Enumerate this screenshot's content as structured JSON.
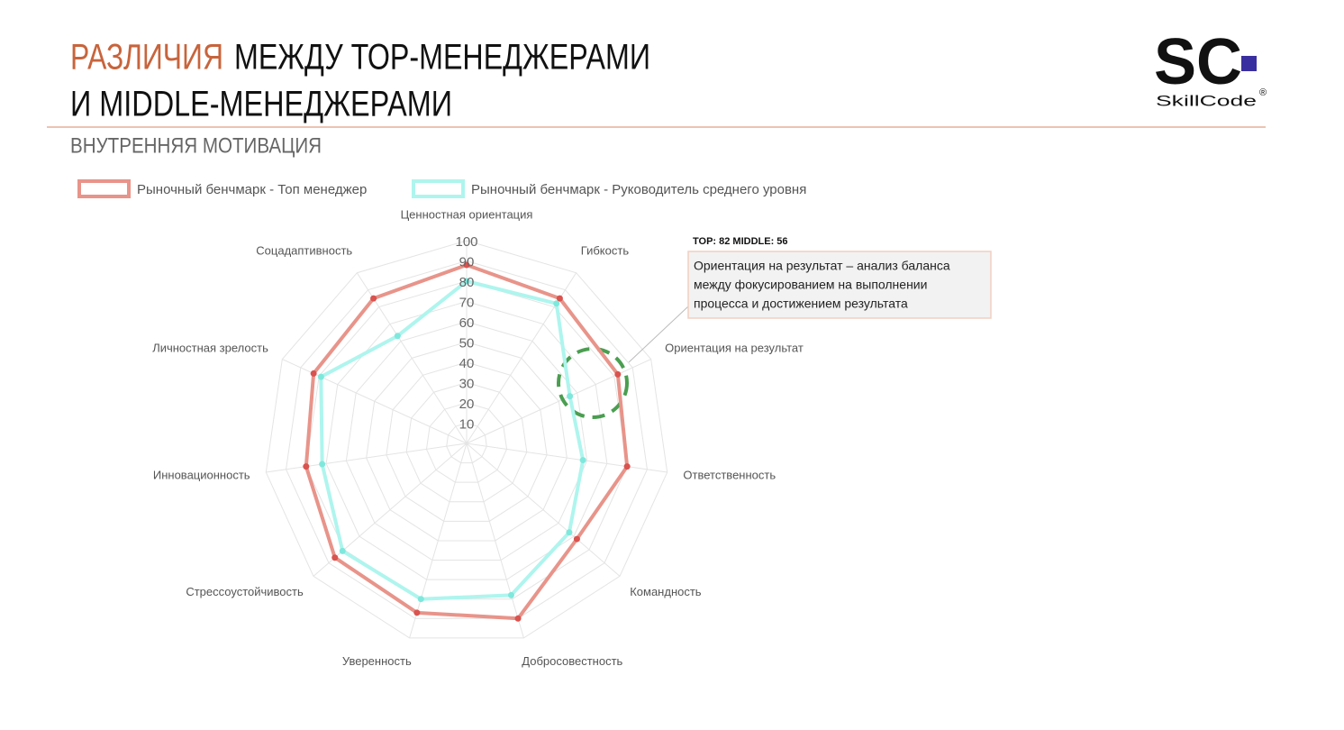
{
  "header": {
    "title_accent": "РАЗЛИЧИЯ",
    "title_line1": "МЕЖДУ ТОР-МЕНЕДЖЕРАМИ",
    "title_line2": "И MIDDLE-МЕНЕДЖЕРАМИ",
    "subtitle": "ВНУТРЕННЯЯ МОТИВАЦИЯ"
  },
  "logo": {
    "mark": "SC",
    "name": "SkillCode",
    "registered": "®"
  },
  "chart_data": {
    "type": "radar",
    "categories": [
      "Ценностная ориентация",
      "Гибкость",
      "Ориентация на результат",
      "Ответственность",
      "Командность",
      "Добросовестность",
      "Уверенность",
      "Стрессоустойчивость",
      "Инновационность",
      "Личностная зрелость",
      "Соцадаптивность"
    ],
    "series": [
      {
        "name": "Рыночный бенчмарк - Топ менеджер",
        "color": "#e8948a",
        "values": [
          88,
          85,
          82,
          80,
          72,
          90,
          87,
          86,
          80,
          83,
          85
        ]
      },
      {
        "name": "Рыночный бенчмарк - Руководитель среднего уровня",
        "color": "#aef5ee",
        "values": [
          80,
          82,
          56,
          58,
          67,
          78,
          80,
          81,
          72,
          79,
          63
        ]
      }
    ],
    "ylim": [
      0,
      100
    ],
    "rticks": [
      10,
      20,
      30,
      40,
      50,
      60,
      70,
      80,
      90,
      100
    ],
    "grid": true,
    "legend": "top-left",
    "annotation": {
      "title": "TOP: 82 MIDDLE: 56",
      "lines": [
        "Ориентация на результат – анализ баланса",
        "между фокусированием на выполнении",
        "процесса и достижением результата"
      ]
    }
  }
}
